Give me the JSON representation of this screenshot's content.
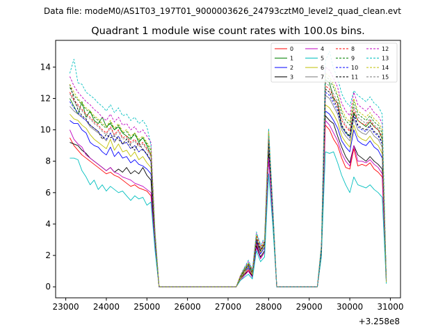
{
  "chart_data": {
    "type": "line",
    "suptitle": "Data file: modeM0/AS1T03_197T01_9000003626_24793cztM0_level2_quad_clean.evt",
    "title": "Quadrant 1 module wise count rates with 100.0s bins.",
    "xlabel": "",
    "ylabel": "",
    "x_offset_label": "+3.258e8",
    "xlim": [
      22750,
      31250
    ],
    "ylim": [
      -0.7,
      15.7
    ],
    "xticks": [
      23000,
      24000,
      25000,
      26000,
      27000,
      28000,
      29000,
      30000,
      31000
    ],
    "xtick_labels": [
      "23000",
      "24000",
      "25000",
      "26000",
      "27000",
      "28000",
      "29000",
      "30000",
      "31000"
    ],
    "yticks": [
      0,
      2,
      4,
      6,
      8,
      10,
      12,
      14
    ],
    "ytick_labels": [
      "0",
      "2",
      "4",
      "6",
      "8",
      "10",
      "12",
      "14"
    ],
    "legend_position": "top-right",
    "x": [
      23100,
      23200,
      23300,
      23400,
      23500,
      23600,
      23700,
      23800,
      23900,
      24000,
      24100,
      24200,
      24300,
      24400,
      24500,
      24600,
      24700,
      24800,
      24900,
      25000,
      25100,
      25200,
      25300,
      27200,
      27300,
      27400,
      27500,
      27600,
      27700,
      27800,
      27900,
      28000,
      28100,
      28200,
      29200,
      29300,
      29400,
      29500,
      29600,
      29700,
      29800,
      29900,
      30000,
      30100,
      30200,
      30300,
      30400,
      30500,
      30600,
      30700,
      30800,
      30900
    ],
    "series": [
      {
        "name": "0",
        "color": "#ff0000",
        "dash": false,
        "values": [
          9.5,
          9.0,
          8.7,
          8.4,
          8.2,
          8.0,
          7.8,
          7.6,
          7.4,
          7.2,
          7.3,
          7.1,
          7.0,
          6.8,
          6.6,
          6.4,
          6.5,
          6.3,
          6.2,
          6.1,
          5.8,
          2.5,
          0,
          0,
          0.5,
          0.8,
          1.1,
          0.7,
          2.8,
          1.8,
          2.2,
          8.3,
          4.5,
          0,
          0,
          2.0,
          10.3,
          10.0,
          9.4,
          9.0,
          8.2,
          7.6,
          7.5,
          8.8,
          7.7,
          7.8,
          7.7,
          7.9,
          7.5,
          7.3,
          7.0,
          0.3
        ]
      },
      {
        "name": "1",
        "color": "#008000",
        "dash": false,
        "values": [
          12.0,
          11.5,
          11.0,
          11.8,
          10.8,
          11.2,
          10.6,
          10.4,
          10.8,
          10.2,
          10.4,
          10.0,
          10.2,
          9.8,
          9.6,
          9.4,
          9.8,
          9.2,
          9.5,
          9.0,
          8.4,
          3.3,
          0,
          0,
          0.6,
          1.1,
          1.5,
          1.0,
          3.0,
          2.4,
          2.8,
          9.6,
          5.0,
          0,
          0,
          2.4,
          13.2,
          13.0,
          12.0,
          11.7,
          10.2,
          9.8,
          9.6,
          11.1,
          10.6,
          10.4,
          10.2,
          10.5,
          10.2,
          10.0,
          9.4,
          0.4
        ]
      },
      {
        "name": "2",
        "color": "#0000ff",
        "dash": false,
        "values": [
          10.6,
          10.4,
          10.4,
          10.0,
          9.8,
          9.2,
          9.0,
          8.9,
          8.6,
          8.4,
          8.9,
          8.3,
          8.6,
          8.2,
          8.3,
          7.9,
          8.1,
          7.8,
          7.7,
          7.5,
          7.2,
          2.9,
          0,
          0,
          0.5,
          0.9,
          1.2,
          0.8,
          2.9,
          2.1,
          2.5,
          8.9,
          4.7,
          0,
          0,
          2.2,
          11.2,
          11.0,
          10.6,
          10.1,
          9.3,
          8.9,
          8.6,
          10.0,
          9.3,
          9.1,
          9.0,
          9.3,
          8.9,
          8.7,
          8.2,
          0.3
        ]
      },
      {
        "name": "3",
        "color": "#000000",
        "dash": false,
        "values": [
          9.2,
          9.1,
          9.0,
          8.7,
          8.5,
          8.2,
          8.0,
          7.8,
          7.6,
          7.4,
          7.6,
          7.3,
          7.5,
          7.3,
          7.6,
          7.2,
          7.4,
          7.2,
          7.6,
          7.1,
          6.8,
          2.6,
          0,
          0,
          0.5,
          0.8,
          1.0,
          0.7,
          2.6,
          1.9,
          2.3,
          8.5,
          4.5,
          0,
          0,
          2.1,
          10.9,
          10.6,
          10.4,
          9.6,
          8.9,
          8.3,
          7.9,
          9.0,
          8.4,
          8.2,
          8.0,
          8.3,
          8.0,
          7.8,
          7.5,
          0.3
        ]
      },
      {
        "name": "4",
        "color": "#bf00bf",
        "dash": false,
        "values": [
          10.0,
          9.4,
          9.1,
          8.9,
          8.4,
          8.2,
          8.0,
          7.8,
          7.6,
          7.4,
          7.6,
          7.3,
          7.2,
          7.0,
          6.9,
          6.8,
          6.6,
          6.5,
          6.4,
          6.2,
          6.0,
          2.5,
          0,
          0,
          0.4,
          0.7,
          1.0,
          0.6,
          2.5,
          1.8,
          2.2,
          8.2,
          4.4,
          0,
          0,
          2.0,
          10.6,
          10.3,
          9.8,
          9.3,
          8.5,
          8.0,
          7.7,
          9.0,
          8.0,
          8.0,
          7.9,
          8.1,
          7.8,
          7.6,
          7.2,
          0.3
        ]
      },
      {
        "name": "5",
        "color": "#00bfbf",
        "dash": false,
        "values": [
          8.2,
          8.2,
          8.1,
          7.4,
          7.0,
          6.5,
          6.8,
          6.2,
          6.5,
          6.1,
          6.4,
          6.2,
          6.0,
          6.1,
          5.8,
          5.5,
          5.8,
          5.6,
          5.7,
          5.2,
          5.4,
          2.3,
          0,
          0,
          0.4,
          0.6,
          0.8,
          0.5,
          2.3,
          1.6,
          1.9,
          7.2,
          4.0,
          0,
          0,
          1.9,
          8.6,
          8.5,
          8.6,
          7.9,
          7.1,
          6.5,
          6.0,
          7.0,
          6.5,
          6.4,
          6.3,
          6.5,
          6.2,
          6.0,
          5.7,
          0.2
        ]
      },
      {
        "name": "6",
        "color": "#bfbf00",
        "dash": false,
        "values": [
          11.0,
          10.7,
          10.6,
          10.3,
          10.1,
          9.7,
          9.4,
          9.2,
          9.0,
          8.8,
          9.4,
          8.7,
          9.1,
          8.6,
          8.7,
          8.3,
          8.6,
          8.1,
          8.3,
          7.9,
          7.6,
          3.0,
          0,
          0,
          0.5,
          0.9,
          1.3,
          0.8,
          3.0,
          2.2,
          2.6,
          9.2,
          4.8,
          0,
          0,
          2.3,
          11.6,
          11.4,
          11.0,
          10.5,
          9.6,
          9.2,
          8.9,
          10.3,
          9.6,
          9.4,
          9.3,
          9.6,
          9.2,
          9.0,
          8.5,
          0.3
        ]
      },
      {
        "name": "7",
        "color": "#808080",
        "dash": false,
        "values": [
          11.5,
          11.2,
          11.0,
          10.8,
          10.6,
          10.2,
          10.0,
          9.8,
          9.6,
          9.3,
          9.8,
          9.2,
          9.6,
          9.1,
          9.2,
          8.8,
          9.0,
          8.6,
          8.8,
          8.4,
          8.0,
          3.1,
          0,
          0,
          0.6,
          1.0,
          1.4,
          0.9,
          3.1,
          2.3,
          2.7,
          9.4,
          4.9,
          0,
          0,
          2.4,
          12.2,
          12.0,
          11.5,
          11.0,
          10.0,
          9.6,
          9.3,
          10.7,
          10.0,
          9.8,
          9.7,
          10.0,
          9.6,
          9.4,
          8.9,
          0.4
        ]
      },
      {
        "name": "8",
        "color": "#ff0000",
        "dash": true,
        "values": [
          12.4,
          11.9,
          11.6,
          11.3,
          11.0,
          10.8,
          10.5,
          10.3,
          10.0,
          9.8,
          10.2,
          9.7,
          10.0,
          9.5,
          9.6,
          9.2,
          9.4,
          9.0,
          9.2,
          8.8,
          8.4,
          3.2,
          0,
          0,
          0.6,
          1.0,
          1.4,
          0.9,
          3.2,
          2.4,
          2.8,
          9.6,
          5.0,
          0,
          0,
          2.5,
          12.8,
          12.6,
          12.1,
          11.6,
          10.6,
          10.2,
          9.9,
          11.3,
          10.6,
          10.4,
          10.3,
          10.6,
          10.2,
          10.0,
          9.5,
          0.4
        ]
      },
      {
        "name": "9",
        "color": "#008000",
        "dash": true,
        "values": [
          12.7,
          12.2,
          11.9,
          11.6,
          11.3,
          11.1,
          10.8,
          10.6,
          10.3,
          10.1,
          10.5,
          10.0,
          10.3,
          9.8,
          9.9,
          9.5,
          9.7,
          9.3,
          9.5,
          9.1,
          8.7,
          3.3,
          0,
          0,
          0.6,
          1.1,
          1.5,
          1.0,
          3.3,
          2.5,
          2.9,
          9.8,
          5.1,
          0,
          0,
          2.5,
          13.4,
          13.2,
          12.7,
          12.1,
          11.1,
          10.6,
          10.3,
          11.8,
          11.0,
          10.8,
          10.6,
          10.9,
          10.5,
          10.3,
          9.8,
          0.4
        ]
      },
      {
        "name": "10",
        "color": "#0000ff",
        "dash": true,
        "values": [
          11.8,
          11.4,
          11.1,
          10.8,
          10.6,
          10.3,
          10.1,
          9.9,
          9.6,
          9.4,
          9.8,
          9.3,
          9.6,
          9.1,
          9.2,
          8.8,
          9.0,
          8.6,
          8.8,
          8.4,
          8.0,
          3.1,
          0,
          0,
          0.6,
          1.0,
          1.3,
          0.9,
          3.0,
          2.3,
          2.7,
          9.3,
          4.9,
          0,
          0,
          2.4,
          12.4,
          12.2,
          11.7,
          11.2,
          10.2,
          9.8,
          9.5,
          10.9,
          10.2,
          10.0,
          9.9,
          10.2,
          9.8,
          9.6,
          9.1,
          0.4
        ]
      },
      {
        "name": "11",
        "color": "#000000",
        "dash": true,
        "values": [
          12.9,
          12.0,
          11.3,
          10.9,
          10.7,
          10.3,
          10.1,
          9.9,
          9.4,
          9.7,
          9.5,
          9.6,
          9.4,
          9.1,
          9.4,
          9.0,
          8.7,
          9.2,
          8.7,
          8.5,
          8.0,
          3.1,
          0,
          0,
          0.6,
          1.0,
          1.4,
          0.9,
          3.0,
          2.3,
          2.7,
          9.3,
          4.9,
          0,
          0,
          2.4,
          12.6,
          12.4,
          11.9,
          11.4,
          10.3,
          9.9,
          9.6,
          11.0,
          10.3,
          10.1,
          10.0,
          10.3,
          9.9,
          9.7,
          9.2,
          0.4
        ]
      },
      {
        "name": "12",
        "color": "#bf00bf",
        "dash": true,
        "values": [
          13.4,
          12.8,
          12.4,
          12.1,
          11.8,
          11.6,
          11.3,
          11.1,
          10.8,
          10.6,
          11.0,
          10.5,
          10.8,
          10.3,
          10.4,
          10.0,
          10.2,
          9.8,
          10.0,
          9.6,
          9.2,
          3.5,
          0,
          0,
          0.7,
          1.2,
          1.6,
          1.1,
          3.4,
          2.6,
          3.0,
          10.0,
          5.2,
          0,
          0,
          2.6,
          14.0,
          13.8,
          13.3,
          12.7,
          11.7,
          11.2,
          10.9,
          12.4,
          11.6,
          11.4,
          11.2,
          11.5,
          11.1,
          10.9,
          10.4,
          0.5
        ]
      },
      {
        "name": "13",
        "color": "#00bfbf",
        "dash": true,
        "values": [
          13.6,
          14.5,
          13.0,
          12.9,
          12.4,
          12.2,
          12.0,
          11.7,
          11.5,
          11.2,
          11.6,
          11.1,
          11.4,
          10.9,
          11.0,
          10.6,
          10.8,
          10.4,
          10.6,
          10.2,
          9.0,
          3.6,
          0,
          0,
          0.7,
          1.2,
          1.7,
          1.1,
          3.5,
          2.7,
          3.1,
          10.1,
          5.3,
          0,
          0,
          2.7,
          14.4,
          15.0,
          13.9,
          13.3,
          12.3,
          11.8,
          11.5,
          12.5,
          12.2,
          12.0,
          11.8,
          12.1,
          11.7,
          11.5,
          11.0,
          0.5
        ]
      },
      {
        "name": "14",
        "color": "#bfbf00",
        "dash": true,
        "values": [
          12.9,
          12.4,
          12.0,
          11.7,
          11.4,
          11.2,
          10.9,
          10.7,
          10.4,
          10.2,
          10.6,
          10.1,
          10.4,
          9.9,
          10.0,
          9.6,
          9.8,
          9.4,
          9.6,
          9.2,
          8.8,
          3.4,
          0,
          0,
          0.7,
          1.1,
          1.5,
          1.0,
          3.3,
          2.5,
          2.9,
          9.9,
          5.1,
          0,
          0,
          2.6,
          13.6,
          13.4,
          12.9,
          12.3,
          11.3,
          10.8,
          10.5,
          12.0,
          11.2,
          11.0,
          10.8,
          11.1,
          10.7,
          10.5,
          10.0,
          0.4
        ]
      },
      {
        "name": "15",
        "color": "#808080",
        "dash": true,
        "values": [
          12.3,
          11.8,
          11.5,
          11.2,
          10.9,
          10.7,
          10.4,
          10.2,
          9.9,
          9.7,
          10.1,
          9.6,
          9.9,
          9.4,
          9.5,
          9.1,
          9.3,
          8.9,
          9.1,
          8.7,
          8.3,
          3.2,
          0,
          0,
          0.6,
          1.0,
          1.4,
          0.9,
          3.1,
          2.4,
          2.8,
          9.5,
          5.0,
          0,
          0,
          2.5,
          13.0,
          12.8,
          12.3,
          11.8,
          10.8,
          10.3,
          10.0,
          11.5,
          10.8,
          10.6,
          10.4,
          10.7,
          10.3,
          10.1,
          9.6,
          0.4
        ]
      }
    ]
  }
}
